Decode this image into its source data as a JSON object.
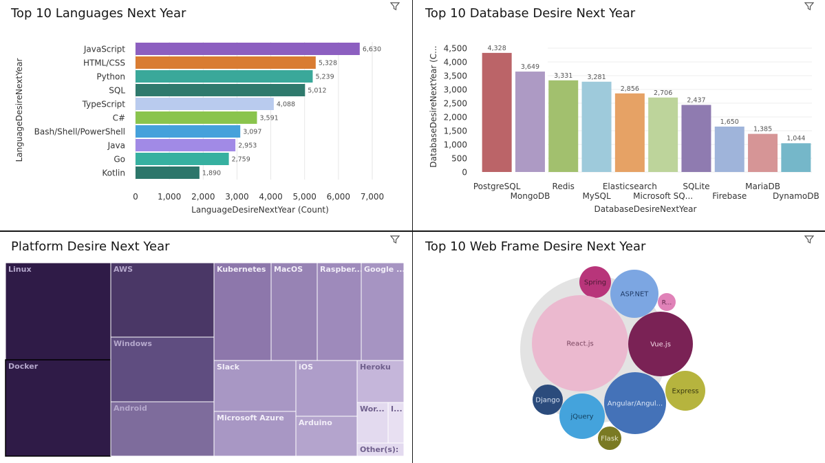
{
  "panels": {
    "languages": {
      "title": "Top 10 Languages Next Year"
    },
    "databases": {
      "title": "Top 10 Database Desire Next Year"
    },
    "platforms": {
      "title": "Platform Desire Next Year"
    },
    "webframes": {
      "title": "Top 10 Web Frame Desire Next Year"
    }
  },
  "icons": {
    "filter": "filter-icon"
  },
  "chart_data": [
    {
      "type": "bar",
      "orientation": "horizontal",
      "title": "Top 10 Languages Next Year",
      "xlabel": "LanguageDesireNextYear (Count)",
      "ylabel": "LanguageDesireNextYear",
      "xlim": [
        0,
        7000
      ],
      "xticks": [
        "0",
        "1,000",
        "2,000",
        "3,000",
        "4,000",
        "5,000",
        "6,000",
        "7,000"
      ],
      "categories": [
        "JavaScript",
        "HTML/CSS",
        "Python",
        "SQL",
        "TypeScript",
        "C#",
        "Bash/Shell/PowerShell",
        "Java",
        "Go",
        "Kotlin"
      ],
      "values": [
        6630,
        5328,
        5239,
        5012,
        4088,
        3591,
        3097,
        2953,
        2759,
        1890
      ],
      "value_labels": [
        "6,630",
        "5,328",
        "5,239",
        "5,012",
        "4,088",
        "3,591",
        "3,097",
        "2,953",
        "2,759",
        "1,890"
      ],
      "colors": [
        "#8c5fc0",
        "#d97c32",
        "#3aa89a",
        "#2f7a6d",
        "#b9cbee",
        "#8ac44d",
        "#45a1db",
        "#a18ae6",
        "#36b0a0",
        "#2c766a"
      ],
      "grid": true
    },
    {
      "type": "bar",
      "title": "Top 10 Database Desire Next Year",
      "xlabel": "DatabaseDesireNextYear",
      "ylabel": "DatabaseDesireNextYear (C...",
      "ylim": [
        0,
        4500
      ],
      "yticks": [
        "4,500",
        "4,000",
        "3,500",
        "3,000",
        "2,500",
        "2,000",
        "1,500",
        "1,000",
        "500",
        "0"
      ],
      "categories": [
        "PostgreSQL",
        "MongoDB",
        "Redis",
        "MySQL",
        "Elasticsearch",
        "Microsoft SQ...",
        "SQLite",
        "Firebase",
        "MariaDB",
        "DynamoDB"
      ],
      "values": [
        4328,
        3649,
        3331,
        3281,
        2856,
        2706,
        2437,
        1650,
        1385,
        1044
      ],
      "value_labels": [
        "4,328",
        "3,649",
        "3,331",
        "3,281",
        "2,856",
        "2,706",
        "2,437",
        "1,650",
        "1,385",
        "1,044"
      ],
      "colors": [
        "#bb6468",
        "#ad9ac4",
        "#a2c06e",
        "#9ecadb",
        "#e6a265",
        "#bdd49b",
        "#8f7bb0",
        "#9fb4da",
        "#d69596",
        "#75b7c9"
      ],
      "grid": true
    },
    {
      "type": "treemap",
      "title": "Platform Desire Next Year",
      "items": [
        {
          "label": "Linux",
          "fill": "#2f1b47"
        },
        {
          "label": "Docker",
          "fill": "#2f1b47"
        },
        {
          "label": "AWS",
          "fill": "#4a3766"
        },
        {
          "label": "Windows",
          "fill": "#5f4d80"
        },
        {
          "label": "Android",
          "fill": "#7e6c9c"
        },
        {
          "label": "Kubernetes",
          "fill": "#8d77ab"
        },
        {
          "label": "MacOS",
          "fill": "#9783b4"
        },
        {
          "label": "Raspber...",
          "fill": "#9e8abb"
        },
        {
          "label": "Google ...",
          "fill": "#a694c2"
        },
        {
          "label": "Slack",
          "fill": "#a897c4"
        },
        {
          "label": "iOS",
          "fill": "#ae9dc9"
        },
        {
          "label": "Heroku",
          "fill": "#c5b6da"
        },
        {
          "label": "Microsoft Azure",
          "fill": "#a897c4"
        },
        {
          "label": "Arduino",
          "fill": "#b4a4cd"
        },
        {
          "label": "Wor...",
          "fill": "#e3daef"
        },
        {
          "label": "I...",
          "fill": "#e8e0f2"
        },
        {
          "label": "Other(s):",
          "fill": "#e3daef"
        }
      ]
    },
    {
      "type": "bubble",
      "title": "Top 10 Web Frame Desire Next Year",
      "items": [
        {
          "label": "Spring",
          "fill": "#b8357a"
        },
        {
          "label": "ASP.NET",
          "fill": "#7ca6e2"
        },
        {
          "label": "R...",
          "fill": "#e082b8"
        },
        {
          "label": "React.js",
          "fill": "#ebb9cf"
        },
        {
          "label": "Vue.js",
          "fill": "#7a2255"
        },
        {
          "label": "Express",
          "fill": "#b6b43e"
        },
        {
          "label": "Django",
          "fill": "#2b4b7c"
        },
        {
          "label": "jQuery",
          "fill": "#44a3dc"
        },
        {
          "label": "Angular/Angul...",
          "fill": "#4472b8"
        },
        {
          "label": "Flask",
          "fill": "#7a7a23"
        }
      ]
    }
  ]
}
